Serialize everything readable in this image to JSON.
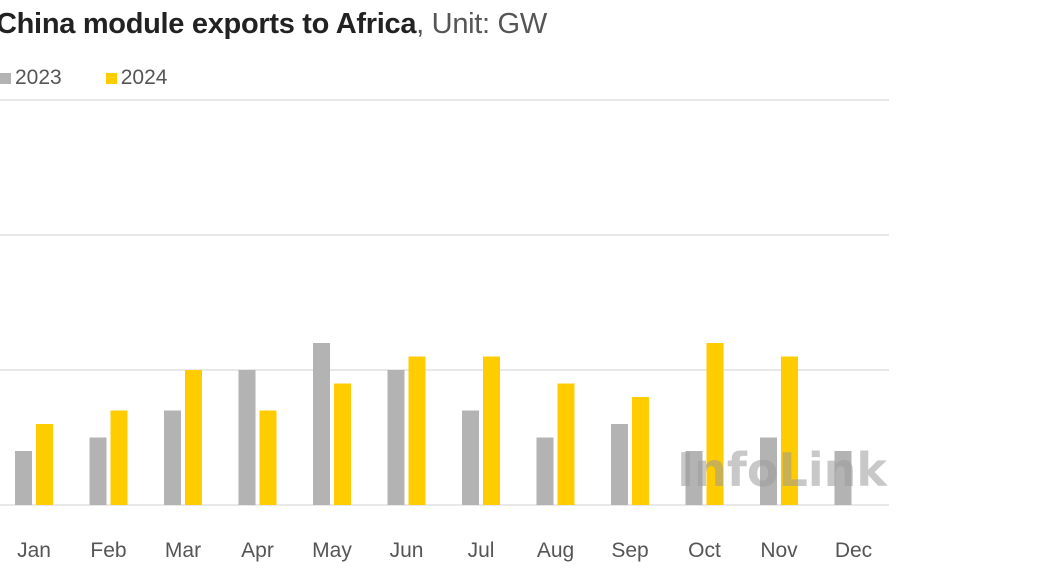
{
  "title": {
    "main": "China module exports to Africa",
    "unit": ", Unit: GW"
  },
  "watermark": "InfoLink",
  "colors": {
    "series_2023": "#b3b3b3",
    "series_2024": "#ffcc00",
    "grid": "#d9d9d9",
    "text": "#555555"
  },
  "chart_data": {
    "type": "bar",
    "categories": [
      "Jan",
      "Feb",
      "Mar",
      "Apr",
      "May",
      "Jun",
      "Jul",
      "Aug",
      "Sep",
      "Oct",
      "Nov",
      "Dec"
    ],
    "series": [
      {
        "name": "2023",
        "values": [
          0.4,
          0.5,
          0.7,
          1.0,
          1.2,
          1.0,
          0.7,
          0.5,
          0.6,
          0.4,
          0.5,
          0.4
        ]
      },
      {
        "name": "2024",
        "values": [
          0.6,
          0.7,
          1.0,
          0.7,
          0.9,
          1.1,
          1.1,
          0.9,
          0.8,
          1.2,
          1.1,
          null
        ]
      }
    ],
    "ylim": [
      0,
      3
    ],
    "y_gridlines": [
      0,
      1,
      2,
      3
    ],
    "grid": true,
    "legend_position": "top-left",
    "xlabel": "",
    "ylabel": ""
  }
}
